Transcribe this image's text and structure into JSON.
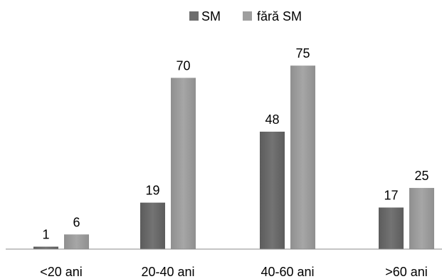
{
  "chart_data": {
    "type": "bar",
    "categories": [
      "<20 ani",
      "20-40 ani",
      "40-60 ani",
      ">60 ani"
    ],
    "series": [
      {
        "name": "SM",
        "values": [
          1,
          19,
          48,
          17
        ],
        "color": "#6e6e6e"
      },
      {
        "name": "fără SM",
        "values": [
          6,
          70,
          75,
          25
        ],
        "color": "#9e9e9e"
      }
    ],
    "ylim": [
      0,
      80
    ],
    "grid": false,
    "legend": "top-center",
    "data_labels": true
  }
}
